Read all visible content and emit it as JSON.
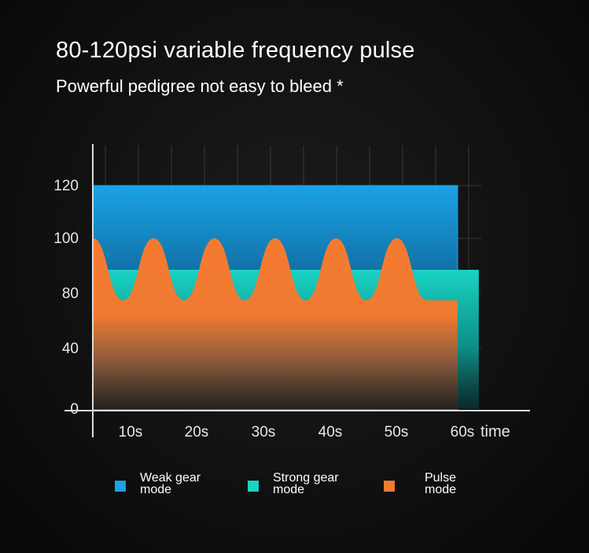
{
  "header": {
    "title": "80-120psi variable frequency pulse",
    "subtitle": "Powerful pedigree not easy to bleed *"
  },
  "colors": {
    "weak": "#1aa3e6",
    "strong": "#19d3c3",
    "pulse": "#f47a30",
    "axis": "#dcdcdc",
    "grid": "#555555"
  },
  "chart_data": {
    "type": "area",
    "title": "",
    "xlabel": "time",
    "ylabel": "",
    "x_tick_labels": [
      "10s",
      "20s",
      "30s",
      "40s",
      "50s",
      "60s"
    ],
    "y_tick_labels": [
      "0",
      "40",
      "80",
      "100",
      "120"
    ],
    "xlim": [
      0,
      60
    ],
    "grid": true,
    "legend_position": "bottom",
    "series": [
      {
        "name": "Weak gear mode",
        "color_key": "weak",
        "x": [
          0,
          60
        ],
        "y": [
          120,
          120
        ]
      },
      {
        "name": "Strong gear mode",
        "color_key": "strong",
        "x": [
          0,
          63.5
        ],
        "y": [
          90,
          90
        ]
      },
      {
        "name": "Pulse mode",
        "color_key": "pulse",
        "x": [
          0,
          5,
          10,
          15,
          20,
          25,
          30,
          35,
          40,
          45,
          50,
          55,
          60
        ],
        "y": [
          100,
          75,
          100,
          75,
          100,
          75,
          100,
          75,
          100,
          75,
          100,
          75,
          75
        ]
      }
    ]
  },
  "legend": [
    {
      "label_line1": "Weak gear",
      "label_line2": "mode",
      "color_key": "weak"
    },
    {
      "label_line1": "Strong gear",
      "label_line2": "mode",
      "color_key": "strong"
    },
    {
      "label_line1": "Pulse",
      "label_line2": "mode",
      "color_key": "pulse"
    }
  ]
}
